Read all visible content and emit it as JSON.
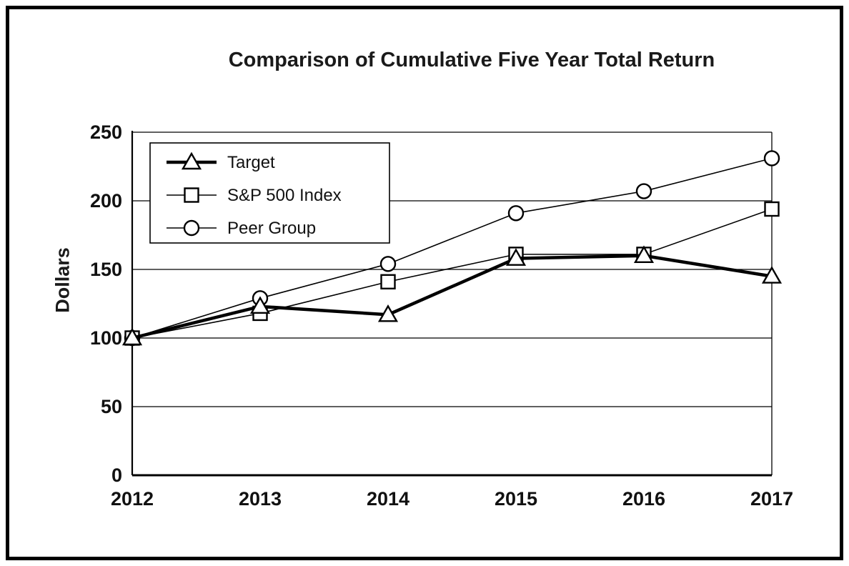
{
  "chart_data": {
    "type": "line",
    "title": "Comparison of Cumulative Five Year Total Return",
    "ylabel": "Dollars",
    "xlabel": "",
    "categories": [
      "2012",
      "2013",
      "2014",
      "2015",
      "2016",
      "2017"
    ],
    "series": [
      {
        "name": "Target",
        "marker": "triangle",
        "line_width": 4.5,
        "values": [
          100,
          123,
          117,
          158,
          160,
          145
        ]
      },
      {
        "name": "S&P 500 Index",
        "marker": "square",
        "line_width": 1.6,
        "values": [
          100,
          118,
          141,
          161,
          161,
          194
        ]
      },
      {
        "name": "Peer Group",
        "marker": "circle",
        "line_width": 1.6,
        "values": [
          100,
          129,
          154,
          191,
          207,
          231
        ]
      }
    ],
    "ylim": [
      0,
      250
    ],
    "yticks": [
      0,
      50,
      100,
      150,
      200,
      250
    ],
    "grid": "horizontal",
    "legend_position": "upper-left-inside",
    "colors": {
      "line": "#000000",
      "marker_fill": "#ffffff",
      "background": "#ffffff",
      "border": "#000000"
    }
  }
}
